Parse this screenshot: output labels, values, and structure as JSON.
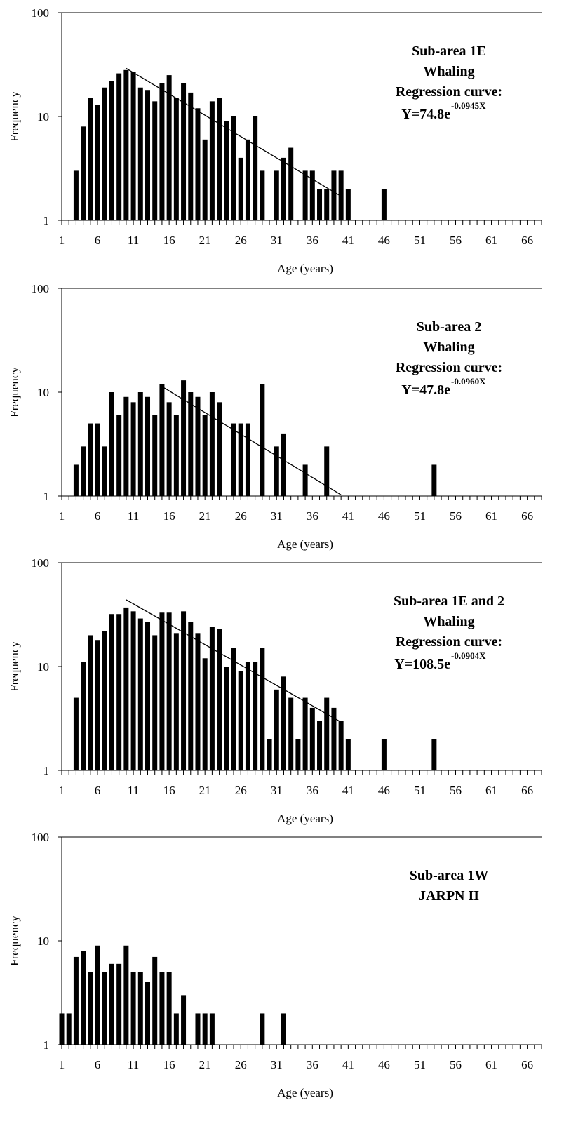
{
  "chart_data": [
    {
      "type": "bar",
      "xlabel": "Age (years)",
      "ylabel": "Frequency",
      "yscale": "log",
      "ylim": [
        1,
        100
      ],
      "xlim": [
        1,
        68
      ],
      "x_tick_labels": [
        "1",
        "6",
        "11",
        "16",
        "21",
        "26",
        "31",
        "36",
        "41",
        "46",
        "51",
        "56",
        "61",
        "66"
      ],
      "y_tick_labels": [
        "1",
        "10",
        "100"
      ],
      "annotations": [
        "Sub-area 1E",
        "Whaling",
        "Regression curve:"
      ],
      "equation": {
        "base": "Y=74.8e",
        "exponent": "-0.0945X"
      },
      "regression": {
        "a": 74.8,
        "b": -0.0945,
        "x_start": 10,
        "x_end": 40
      },
      "points": [
        [
          3,
          3
        ],
        [
          4,
          8
        ],
        [
          5,
          15
        ],
        [
          6,
          13
        ],
        [
          7,
          19
        ],
        [
          8,
          22
        ],
        [
          9,
          26
        ],
        [
          10,
          28
        ],
        [
          11,
          27
        ],
        [
          12,
          19
        ],
        [
          13,
          18
        ],
        [
          14,
          14
        ],
        [
          15,
          21
        ],
        [
          16,
          25
        ],
        [
          17,
          15
        ],
        [
          18,
          21
        ],
        [
          19,
          17
        ],
        [
          20,
          12
        ],
        [
          21,
          6
        ],
        [
          22,
          14
        ],
        [
          23,
          15
        ],
        [
          24,
          9
        ],
        [
          25,
          10
        ],
        [
          26,
          4
        ],
        [
          27,
          6
        ],
        [
          28,
          10
        ],
        [
          29,
          3
        ],
        [
          31,
          3
        ],
        [
          32,
          4
        ],
        [
          33,
          5
        ],
        [
          35,
          3
        ],
        [
          36,
          3
        ],
        [
          37,
          2
        ],
        [
          38,
          2
        ],
        [
          39,
          3
        ],
        [
          40,
          3
        ],
        [
          41,
          2
        ],
        [
          46,
          2
        ]
      ]
    },
    {
      "type": "bar",
      "xlabel": "Age (years)",
      "ylabel": "Frequency",
      "yscale": "log",
      "ylim": [
        1,
        100
      ],
      "xlim": [
        1,
        68
      ],
      "x_tick_labels": [
        "1",
        "6",
        "11",
        "16",
        "21",
        "26",
        "31",
        "36",
        "41",
        "46",
        "51",
        "56",
        "61",
        "66"
      ],
      "y_tick_labels": [
        "1",
        "10",
        "100"
      ],
      "annotations": [
        "Sub-area 2",
        "Whaling",
        "Regression curve:"
      ],
      "equation": {
        "base": "Y=47.8e",
        "exponent": "-0.0960X"
      },
      "regression": {
        "a": 47.8,
        "b": -0.096,
        "x_start": 15,
        "x_end": 40
      },
      "points": [
        [
          3,
          2
        ],
        [
          4,
          3
        ],
        [
          5,
          5
        ],
        [
          6,
          5
        ],
        [
          7,
          3
        ],
        [
          8,
          10
        ],
        [
          9,
          6
        ],
        [
          10,
          9
        ],
        [
          11,
          8
        ],
        [
          12,
          10
        ],
        [
          13,
          9
        ],
        [
          14,
          6
        ],
        [
          15,
          12
        ],
        [
          16,
          8
        ],
        [
          17,
          6
        ],
        [
          18,
          13
        ],
        [
          19,
          10
        ],
        [
          20,
          9
        ],
        [
          21,
          6
        ],
        [
          22,
          10
        ],
        [
          23,
          8
        ],
        [
          25,
          5
        ],
        [
          26,
          5
        ],
        [
          27,
          5
        ],
        [
          29,
          12
        ],
        [
          31,
          3
        ],
        [
          32,
          4
        ],
        [
          35,
          2
        ],
        [
          38,
          3
        ],
        [
          53,
          2
        ]
      ]
    },
    {
      "type": "bar",
      "xlabel": "Age (years)",
      "ylabel": "Frequency",
      "yscale": "log",
      "ylim": [
        1,
        100
      ],
      "xlim": [
        1,
        68
      ],
      "x_tick_labels": [
        "1",
        "6",
        "11",
        "16",
        "21",
        "26",
        "31",
        "36",
        "41",
        "46",
        "51",
        "56",
        "61",
        "66"
      ],
      "y_tick_labels": [
        "1",
        "10",
        "100"
      ],
      "annotations": [
        "Sub-area 1E and 2",
        "Whaling",
        "Regression curve:"
      ],
      "equation": {
        "base": "Y=108.5e",
        "exponent": "-0.0904X"
      },
      "regression": {
        "a": 108.5,
        "b": -0.0904,
        "x_start": 10,
        "x_end": 40
      },
      "points": [
        [
          3,
          5
        ],
        [
          4,
          11
        ],
        [
          5,
          20
        ],
        [
          6,
          18
        ],
        [
          7,
          22
        ],
        [
          8,
          32
        ],
        [
          9,
          32
        ],
        [
          10,
          37
        ],
        [
          11,
          34
        ],
        [
          12,
          29
        ],
        [
          13,
          27
        ],
        [
          14,
          20
        ],
        [
          15,
          33
        ],
        [
          16,
          33
        ],
        [
          17,
          21
        ],
        [
          18,
          34
        ],
        [
          19,
          27
        ],
        [
          20,
          21
        ],
        [
          21,
          12
        ],
        [
          22,
          24
        ],
        [
          23,
          23
        ],
        [
          24,
          10
        ],
        [
          25,
          15
        ],
        [
          26,
          9
        ],
        [
          27,
          11
        ],
        [
          28,
          11
        ],
        [
          29,
          15
        ],
        [
          30,
          2
        ],
        [
          31,
          6
        ],
        [
          32,
          8
        ],
        [
          33,
          5
        ],
        [
          34,
          2
        ],
        [
          35,
          5
        ],
        [
          36,
          4
        ],
        [
          37,
          3
        ],
        [
          38,
          5
        ],
        [
          39,
          4
        ],
        [
          40,
          3
        ],
        [
          41,
          2
        ],
        [
          46,
          2
        ],
        [
          53,
          2
        ]
      ]
    },
    {
      "type": "bar",
      "xlabel": "Age (years)",
      "ylabel": "Frequency",
      "yscale": "log",
      "ylim": [
        1,
        100
      ],
      "xlim": [
        1,
        68
      ],
      "x_tick_labels": [
        "1",
        "6",
        "11",
        "16",
        "21",
        "26",
        "31",
        "36",
        "41",
        "46",
        "51",
        "56",
        "61",
        "66"
      ],
      "y_tick_labels": [
        "1",
        "10",
        "100"
      ],
      "annotations": [
        "Sub-area 1W",
        "JARPN II"
      ],
      "points": [
        [
          1,
          2
        ],
        [
          2,
          2
        ],
        [
          3,
          7
        ],
        [
          4,
          8
        ],
        [
          5,
          5
        ],
        [
          6,
          9
        ],
        [
          7,
          5
        ],
        [
          8,
          6
        ],
        [
          9,
          6
        ],
        [
          10,
          9
        ],
        [
          11,
          5
        ],
        [
          12,
          5
        ],
        [
          13,
          4
        ],
        [
          14,
          7
        ],
        [
          15,
          5
        ],
        [
          16,
          5
        ],
        [
          17,
          2
        ],
        [
          18,
          3
        ],
        [
          20,
          2
        ],
        [
          21,
          2
        ],
        [
          22,
          2
        ],
        [
          29,
          2
        ],
        [
          32,
          2
        ]
      ]
    }
  ]
}
